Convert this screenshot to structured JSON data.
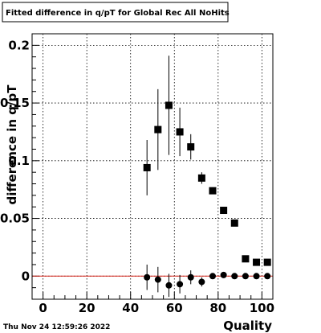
{
  "title": "Fitted difference in q/pT for Global Rec All NoHits",
  "timestamp": "Thu Nov 24 12:59:26 2022",
  "colors": {
    "reference_line": "#d8261c",
    "markers": "#000000",
    "grid": "#000000"
  },
  "chart_data": {
    "type": "scatter",
    "title": "Fitted difference in q/pT for Global Rec All NoHits",
    "xlabel": "Quality",
    "ylabel": "difference in q/pT",
    "xlim": [
      -5,
      105
    ],
    "ylim": [
      -0.02,
      0.21
    ],
    "x_ticks": [
      0,
      20,
      40,
      60,
      80,
      100
    ],
    "y_ticks": [
      0,
      0.05,
      0.1,
      0.15,
      0.2
    ],
    "y_tick_labels": [
      "0",
      "0.05",
      "0.1",
      "0.15",
      "0.2"
    ],
    "grid": true,
    "reference_line_y": 0,
    "series": [
      {
        "marker": "square",
        "points": [
          {
            "x": 47.5,
            "y": 0.094,
            "err": 0.024
          },
          {
            "x": 52.5,
            "y": 0.127,
            "err": 0.035
          },
          {
            "x": 57.5,
            "y": 0.148,
            "err": 0.043
          },
          {
            "x": 62.5,
            "y": 0.125,
            "err": 0.021
          },
          {
            "x": 67.5,
            "y": 0.112,
            "err": 0.011
          },
          {
            "x": 72.5,
            "y": 0.085,
            "err": 0.005
          },
          {
            "x": 77.5,
            "y": 0.074,
            "err": 0.003
          },
          {
            "x": 82.5,
            "y": 0.057,
            "err": 0.002
          },
          {
            "x": 87.5,
            "y": 0.046,
            "err": 0.002
          },
          {
            "x": 92.5,
            "y": 0.015,
            "err": 0.001
          },
          {
            "x": 97.5,
            "y": 0.012,
            "err": 0.001
          },
          {
            "x": 102.5,
            "y": 0.012,
            "err": 0.001
          }
        ]
      },
      {
        "marker": "circle",
        "points": [
          {
            "x": 47.5,
            "y": -0.001,
            "err": 0.011
          },
          {
            "x": 52.5,
            "y": -0.003,
            "err": 0.011
          },
          {
            "x": 57.5,
            "y": -0.008,
            "err": 0.01
          },
          {
            "x": 62.5,
            "y": -0.007,
            "err": 0.008
          },
          {
            "x": 67.5,
            "y": -0.001,
            "err": 0.006
          },
          {
            "x": 72.5,
            "y": -0.005,
            "err": 0.004
          },
          {
            "x": 77.5,
            "y": 0.0,
            "err": 0.002
          },
          {
            "x": 82.5,
            "y": 0.001,
            "err": 0.002
          },
          {
            "x": 87.5,
            "y": 0.0,
            "err": 0.001
          },
          {
            "x": 92.5,
            "y": 0.0,
            "err": 0.001
          },
          {
            "x": 97.5,
            "y": 0.0,
            "err": 0.001
          },
          {
            "x": 102.5,
            "y": 0.0,
            "err": 0.001
          }
        ]
      }
    ]
  }
}
